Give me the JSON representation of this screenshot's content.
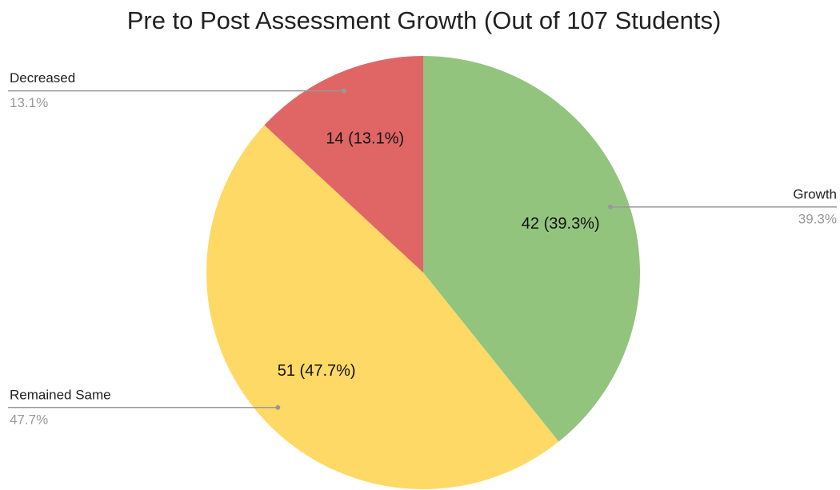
{
  "chart_data": {
    "type": "pie",
    "title": "Pre to Post Assessment Growth (Out of 107 Students)",
    "categories": [
      "Growth",
      "Remained Same",
      "Decreased"
    ],
    "values": [
      42,
      51,
      14
    ],
    "value_labels": [
      "42 (39.3%)",
      "51 (47.7%)",
      "14 (13.1%)"
    ],
    "percent_labels": [
      "39.3%",
      "47.7%",
      "13.1%"
    ],
    "colors": [
      "#93c47d",
      "#ffd966",
      "#e06666"
    ]
  }
}
